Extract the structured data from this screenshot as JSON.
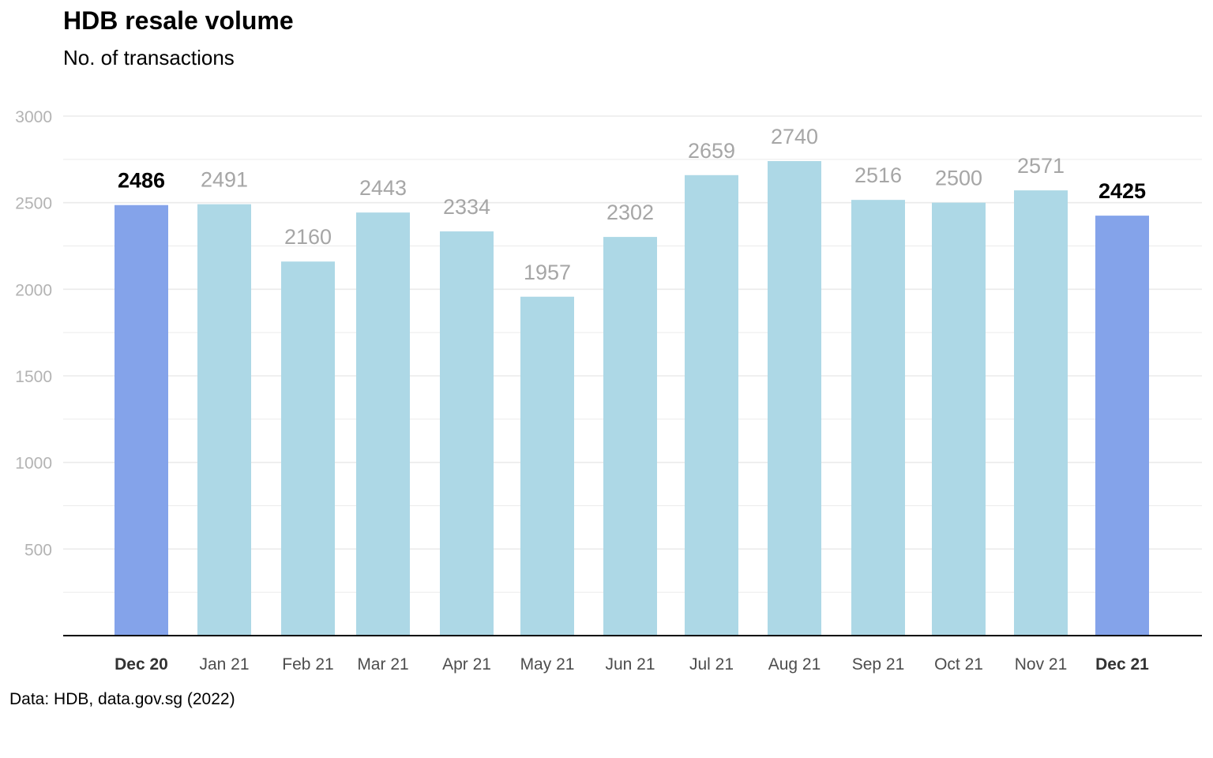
{
  "header": {
    "title": "HDB resale volume",
    "subtitle": "No. of transactions"
  },
  "caption": "Data: HDB, data.gov.sg (2022)",
  "colors": {
    "highlight_bar": "#84a3ea",
    "normal_bar": "#add8e6",
    "highlight_label": "#000000",
    "normal_label": "#a6a6a6",
    "grid": "#ebebeb",
    "axis": "#000000"
  },
  "chart_data": {
    "type": "bar",
    "title": "HDB resale volume",
    "subtitle": "No. of transactions",
    "xlabel": "",
    "ylabel": "",
    "ylim": [
      0,
      3000
    ],
    "yticks": [
      500,
      1000,
      1500,
      2000,
      2500,
      3000
    ],
    "grid": true,
    "legend": "none",
    "categories": [
      "Dec 20",
      "Jan 21",
      "Feb 21",
      "Mar 21",
      "Apr 21",
      "May 21",
      "Jun 21",
      "Jul 21",
      "Aug 21",
      "Sep 21",
      "Oct 21",
      "Nov 21",
      "Dec 21"
    ],
    "values": [
      2486,
      2491,
      2160,
      2443,
      2334,
      1957,
      2302,
      2659,
      2740,
      2516,
      2500,
      2571,
      2425
    ],
    "highlighted": [
      "Dec 20",
      "Dec 21"
    ]
  }
}
